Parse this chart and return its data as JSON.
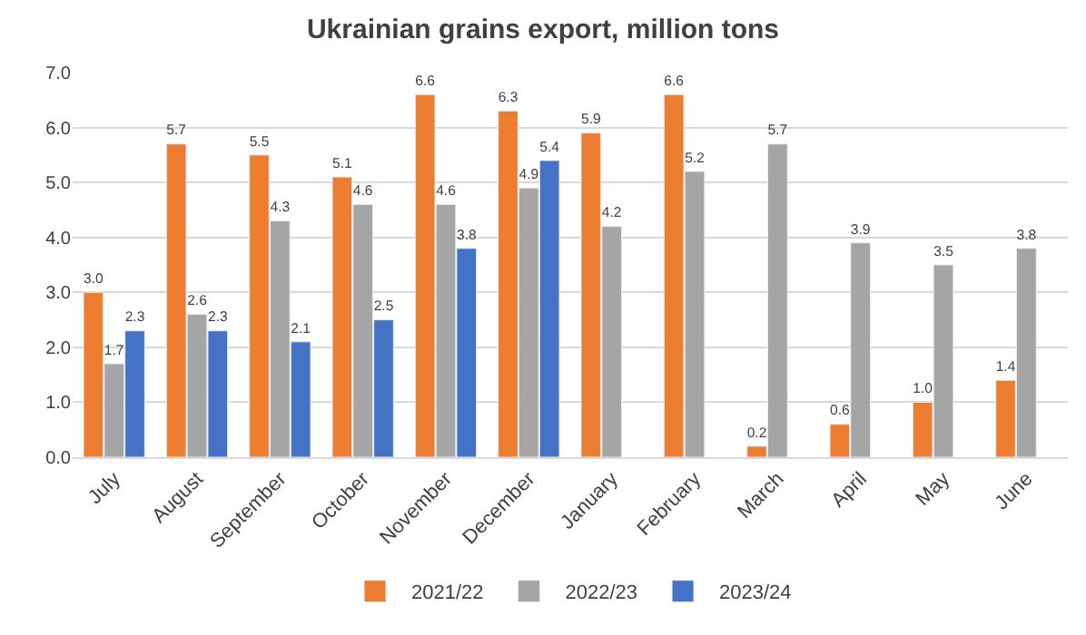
{
  "chart_data": {
    "type": "bar",
    "title": "Ukrainian grains export, million tons",
    "categories": [
      "July",
      "August",
      "September",
      "October",
      "November",
      "December",
      "January",
      "February",
      "March",
      "April",
      "May",
      "June"
    ],
    "series": [
      {
        "name": "2021/22",
        "color": "#ed7d31",
        "values": [
          3.0,
          5.7,
          5.5,
          5.1,
          6.6,
          6.3,
          5.9,
          6.6,
          0.2,
          0.6,
          1.0,
          1.4
        ],
        "value_labels": [
          "3.0",
          "5.7",
          "5.5",
          "5.1",
          "6.6",
          "6.3",
          "5.9",
          "6.6",
          "0.2",
          "0.6",
          "1.0",
          "1.4"
        ]
      },
      {
        "name": "2022/23",
        "color": "#a5a5a5",
        "values": [
          1.7,
          2.6,
          4.3,
          4.6,
          4.6,
          4.9,
          4.2,
          5.2,
          5.7,
          3.9,
          3.5,
          3.8
        ],
        "value_labels": [
          "1.7",
          "2.6",
          "4.3",
          "4.6",
          "4.6",
          "4.9",
          "4.2",
          "5.2",
          "5.7",
          "3.9",
          "3.5",
          "3.8"
        ]
      },
      {
        "name": "2023/24",
        "color": "#4472c4",
        "values": [
          2.3,
          2.3,
          2.1,
          2.5,
          3.8,
          5.4,
          null,
          null,
          null,
          null,
          null,
          null
        ],
        "value_labels": [
          "2.3",
          "2.3",
          "2.1",
          "2.5",
          "3.8",
          "5.4",
          null,
          null,
          null,
          null,
          null,
          null
        ]
      }
    ],
    "ylim": [
      0,
      7
    ],
    "yticks": [
      {
        "value": 0,
        "label": "0.0"
      },
      {
        "value": 1,
        "label": "1.0"
      },
      {
        "value": 2,
        "label": "2.0"
      },
      {
        "value": 3,
        "label": "3.0"
      },
      {
        "value": 4,
        "label": "4.0"
      },
      {
        "value": 5,
        "label": "5.0"
      },
      {
        "value": 6,
        "label": "6.0"
      },
      {
        "value": 7,
        "label": "7.0"
      }
    ],
    "grid": "y",
    "legend": "bottom"
  }
}
